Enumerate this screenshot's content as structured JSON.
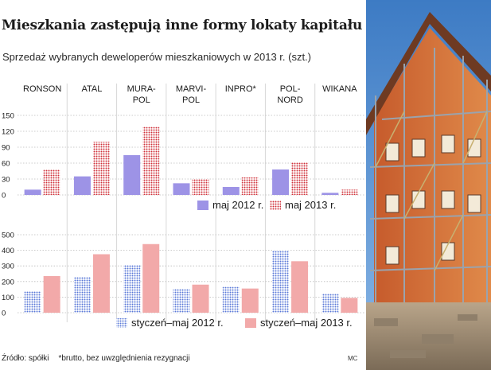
{
  "header": {
    "title": "Mieszkania zastępują inne formy lokaty kapitału",
    "subtitle": "Sprzedaż wybranych deweloperów mieszkaniowych w 2013 r. (szt.)"
  },
  "footer": {
    "source": "Źródło: spółki",
    "note": "*brutto, bez uwzględnienia rezygnacji",
    "credit": "MC"
  },
  "colors": {
    "may2012": "#9d93e6",
    "may2013_dots": "#d0313a",
    "jan_may2012_dots": "#5a78d8",
    "jan_may2013": "#f2a9a9",
    "grid": "#bbbbbb"
  },
  "chart_data": [
    {
      "type": "bar",
      "categories": [
        "RONSON",
        "ATAL",
        "MURA-\nPOL",
        "MARVI-\nPOL",
        "INPRO*",
        "POL-\nNORD",
        "WIKANA"
      ],
      "series": [
        {
          "name": "maj 2012 r.",
          "values": [
            10,
            35,
            75,
            22,
            15,
            48,
            4
          ]
        },
        {
          "name": "maj 2013 r.",
          "values": [
            48,
            100,
            128,
            30,
            33,
            62,
            10
          ]
        }
      ],
      "yticks": [
        "0",
        "30",
        "60",
        "90",
        "120",
        "150"
      ],
      "ylim": [
        0,
        150
      ],
      "legend": "bottom-right"
    },
    {
      "type": "bar",
      "categories": [
        "RONSON",
        "ATAL",
        "MURA-\nPOL",
        "MARVI-\nPOL",
        "INPRO*",
        "POL-\nNORD",
        "WIKANA"
      ],
      "series": [
        {
          "name": "styczeń–maj 2012 r.",
          "values": [
            135,
            230,
            305,
            155,
            165,
            400,
            125
          ]
        },
        {
          "name": "styczeń–maj 2013 r.",
          "values": [
            235,
            375,
            440,
            180,
            155,
            330,
            95
          ]
        }
      ],
      "yticks": [
        "0",
        "100",
        "200",
        "300",
        "400",
        "500"
      ],
      "ylim": [
        0,
        500
      ],
      "legend": "bottom-right"
    }
  ]
}
